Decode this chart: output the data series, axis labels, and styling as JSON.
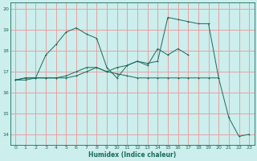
{
  "xlabel": "Humidex (Indice chaleur)",
  "bg_color": "#cceeed",
  "grid_color": "#e8a0a0",
  "line_color": "#1a6b5a",
  "xlim": [
    -0.5,
    23.5
  ],
  "ylim": [
    13.5,
    20.3
  ],
  "xticks": [
    0,
    1,
    2,
    3,
    4,
    5,
    6,
    7,
    8,
    9,
    10,
    11,
    12,
    13,
    14,
    15,
    16,
    17,
    18,
    19,
    20,
    21,
    22,
    23
  ],
  "yticks": [
    14,
    15,
    16,
    17,
    18,
    19,
    20
  ],
  "line1_y": [
    16.6,
    16.7,
    16.7,
    17.8,
    18.3,
    18.9,
    19.1,
    18.8,
    18.6,
    17.2,
    16.7,
    17.3,
    17.5,
    17.3,
    18.1,
    17.8,
    18.1,
    17.8,
    null,
    null,
    null,
    null,
    null,
    null
  ],
  "line2_y": [
    16.6,
    16.7,
    16.7,
    16.7,
    16.7,
    16.7,
    16.8,
    17.0,
    17.2,
    17.0,
    16.9,
    16.8,
    16.7,
    16.7,
    16.7,
    16.7,
    16.7,
    16.7,
    16.7,
    16.7,
    16.7,
    null,
    null,
    null
  ],
  "line3_y": [
    16.6,
    16.6,
    16.7,
    16.7,
    16.7,
    16.8,
    17.0,
    17.2,
    17.2,
    17.0,
    17.2,
    17.3,
    17.5,
    17.4,
    17.5,
    19.6,
    19.5,
    19.4,
    19.3,
    19.3,
    16.7,
    14.8,
    13.9,
    14.0
  ]
}
